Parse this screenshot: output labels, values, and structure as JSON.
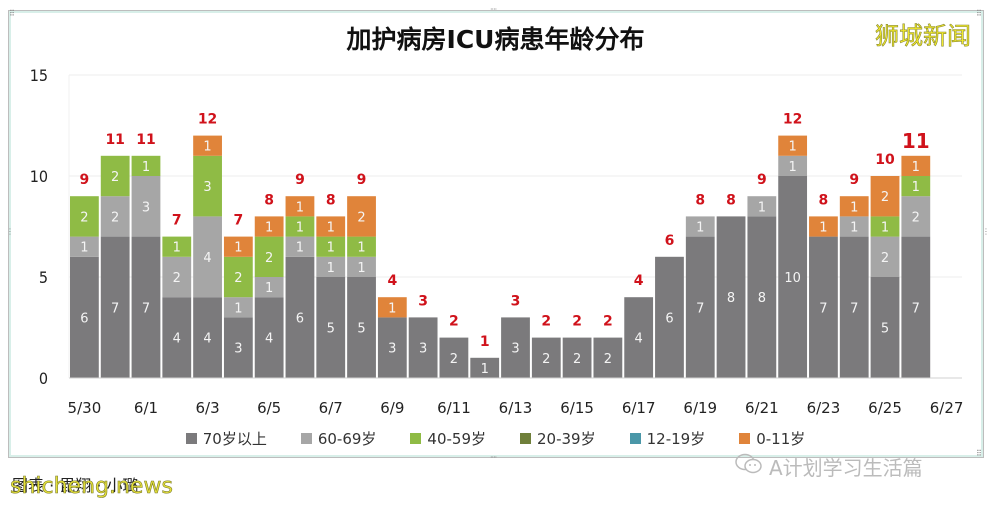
{
  "brand": "狮城新闻",
  "footer": {
    "caption": "图表 · 毘翔 · 小璐",
    "watermark": "shicheng.news",
    "wechat_account": "A计划学习生活篇"
  },
  "chart_data": {
    "type": "bar",
    "stacked": true,
    "title": "加护病房ICU病患年龄分布",
    "xlabel": "",
    "ylabel": "",
    "ylim": [
      0,
      15
    ],
    "yticks": [
      0,
      5,
      10,
      15
    ],
    "grid": true,
    "legend_position": "bottom",
    "categories": [
      "5/30",
      "5/31",
      "6/1",
      "6/2",
      "6/3",
      "6/4",
      "6/5",
      "6/6",
      "6/7",
      "6/8",
      "6/9",
      "6/10",
      "6/11",
      "6/12",
      "6/13",
      "6/14",
      "6/15",
      "6/16",
      "6/17",
      "6/18",
      "6/19",
      "6/20",
      "6/21",
      "6/22",
      "6/23",
      "6/24",
      "6/25",
      "6/26",
      "6/27"
    ],
    "xtick_labels": [
      "5/30",
      "6/1",
      "6/3",
      "6/5",
      "6/7",
      "6/9",
      "6/11",
      "6/13",
      "6/15",
      "6/17",
      "6/19",
      "6/21",
      "6/23",
      "6/25",
      "6/27"
    ],
    "series": [
      {
        "name": "70岁以上",
        "color": "#7b7a7c",
        "values": [
          6,
          7,
          7,
          4,
          4,
          3,
          4,
          6,
          5,
          5,
          3,
          3,
          2,
          1,
          3,
          2,
          2,
          2,
          4,
          6,
          7,
          8,
          8,
          10,
          7,
          7,
          5,
          7,
          0
        ]
      },
      {
        "name": "60-69岁",
        "color": "#a6a6a6",
        "values": [
          1,
          2,
          3,
          2,
          4,
          1,
          1,
          1,
          1,
          1,
          0,
          0,
          0,
          0,
          0,
          0,
          0,
          0,
          0,
          0,
          1,
          0,
          1,
          1,
          0,
          1,
          2,
          2,
          0
        ]
      },
      {
        "name": "40-59岁",
        "color": "#8fbb45",
        "values": [
          2,
          2,
          1,
          1,
          3,
          2,
          2,
          1,
          1,
          1,
          0,
          0,
          0,
          0,
          0,
          0,
          0,
          0,
          0,
          0,
          0,
          0,
          0,
          0,
          0,
          0,
          1,
          1,
          0
        ]
      },
      {
        "name": "20-39岁",
        "color": "#6f7f3a",
        "values": [
          0,
          0,
          0,
          0,
          0,
          0,
          0,
          0,
          0,
          0,
          0,
          0,
          0,
          0,
          0,
          0,
          0,
          0,
          0,
          0,
          0,
          0,
          0,
          0,
          0,
          0,
          0,
          0,
          0
        ]
      },
      {
        "name": "12-19岁",
        "color": "#4a97a8",
        "values": [
          0,
          0,
          0,
          0,
          0,
          0,
          0,
          0,
          0,
          0,
          0,
          0,
          0,
          0,
          0,
          0,
          0,
          0,
          0,
          0,
          0,
          0,
          0,
          0,
          0,
          0,
          0,
          0,
          0
        ]
      },
      {
        "name": "0-11岁",
        "color": "#e0843a",
        "values": [
          0,
          0,
          0,
          0,
          1,
          1,
          1,
          1,
          1,
          2,
          1,
          0,
          0,
          0,
          0,
          0,
          0,
          0,
          0,
          0,
          0,
          0,
          0,
          1,
          1,
          1,
          2,
          1,
          0
        ]
      }
    ],
    "totals": [
      9,
      11,
      11,
      7,
      12,
      7,
      8,
      9,
      8,
      9,
      4,
      3,
      2,
      1,
      3,
      2,
      2,
      2,
      4,
      6,
      8,
      8,
      9,
      12,
      8,
      9,
      10,
      11,
      null
    ],
    "total_label_color": "#d0121b"
  }
}
